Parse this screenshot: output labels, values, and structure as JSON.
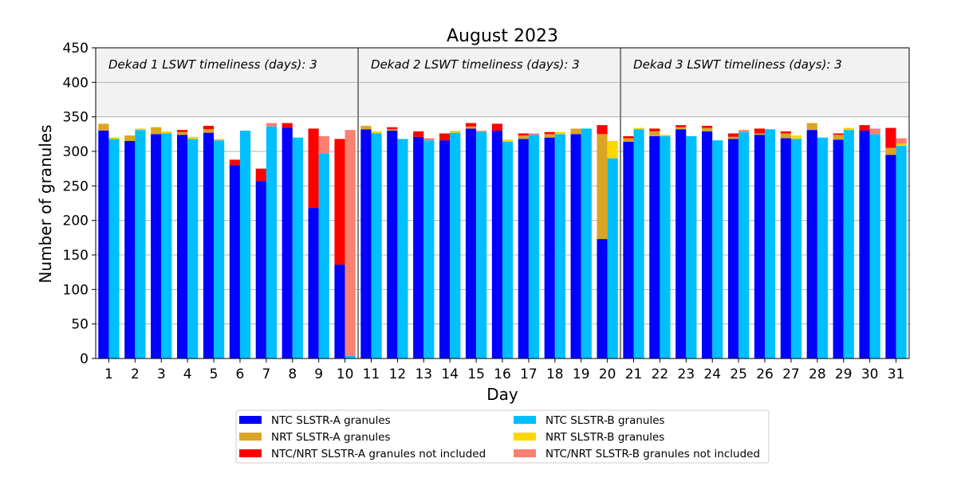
{
  "chart_data": {
    "type": "bar",
    "title": "August 2023",
    "xlabel": "Day",
    "ylabel": "Number of granules",
    "ylim": [
      0,
      450
    ],
    "yticks": [
      0,
      50,
      100,
      150,
      200,
      250,
      300,
      350,
      400,
      450
    ],
    "grid": true,
    "legend_position": "bottom-center",
    "dekad_labels": [
      "Dekad 1 LSWT timeliness (days): 3",
      "Dekad 2 LSWT timeliness (days): 3",
      "Dekad 3 LSWT timeliness (days): 3"
    ],
    "dekad_band_range": [
      350,
      450
    ],
    "dekad_boundaries": [
      10.5,
      20.5
    ],
    "categories": [
      "1",
      "2",
      "3",
      "4",
      "5",
      "6",
      "7",
      "8",
      "9",
      "10",
      "11",
      "12",
      "13",
      "14",
      "15",
      "16",
      "17",
      "18",
      "19",
      "20",
      "21",
      "22",
      "23",
      "24",
      "25",
      "26",
      "27",
      "28",
      "29",
      "30",
      "31"
    ],
    "series": [
      {
        "name": "NTC SLSTR-A granules",
        "group": "A",
        "color": "#0000ff",
        "values": [
          330,
          315,
          325,
          324,
          327,
          280,
          257,
          334,
          218,
          136,
          332,
          330,
          321,
          316,
          333,
          330,
          318,
          320,
          325,
          173,
          314,
          322,
          332,
          329,
          318,
          324,
          319,
          331,
          317,
          330,
          295
        ]
      },
      {
        "name": "NRT SLSTR-A granules",
        "group": "A",
        "color": "#daa520",
        "values": [
          10,
          8,
          10,
          4,
          5,
          0,
          0,
          0,
          0,
          0,
          5,
          2,
          0,
          0,
          3,
          0,
          5,
          5,
          8,
          152,
          5,
          7,
          3,
          5,
          3,
          2,
          7,
          10,
          7,
          0,
          10
        ]
      },
      {
        "name": "NTC/NRT SLSTR-A granules not included",
        "group": "A",
        "color": "#ff0000",
        "values": [
          0,
          0,
          0,
          3,
          5,
          8,
          18,
          7,
          115,
          182,
          0,
          3,
          8,
          10,
          5,
          10,
          3,
          3,
          0,
          13,
          3,
          4,
          3,
          3,
          5,
          7,
          3,
          0,
          2,
          8,
          29
        ]
      },
      {
        "name": "NTC SLSTR-B granules",
        "group": "B",
        "color": "#00bfff",
        "values": [
          318,
          331,
          326,
          318,
          316,
          330,
          336,
          320,
          297,
          4,
          326,
          318,
          316,
          327,
          328,
          314,
          324,
          325,
          333,
          290,
          332,
          322,
          322,
          316,
          328,
          332,
          318,
          320,
          331,
          325,
          308
        ]
      },
      {
        "name": "NRT SLSTR-B granules",
        "group": "B",
        "color": "#ffd700",
        "values": [
          2,
          2,
          3,
          3,
          2,
          0,
          0,
          0,
          0,
          0,
          3,
          0,
          0,
          3,
          0,
          3,
          0,
          3,
          0,
          25,
          2,
          2,
          0,
          0,
          0,
          0,
          5,
          0,
          3,
          0,
          3
        ]
      },
      {
        "name": "NTC/NRT SLSTR-B granules not included",
        "group": "B",
        "color": "#fa8072",
        "values": [
          0,
          0,
          0,
          0,
          0,
          0,
          5,
          0,
          25,
          327,
          0,
          0,
          3,
          0,
          2,
          0,
          2,
          0,
          0,
          0,
          0,
          0,
          0,
          0,
          3,
          0,
          0,
          0,
          0,
          8,
          8
        ]
      }
    ]
  }
}
